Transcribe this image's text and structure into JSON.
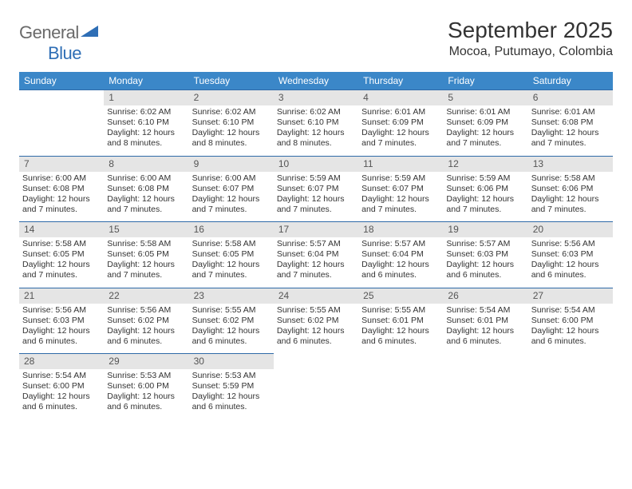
{
  "logo": {
    "general": "General",
    "blue": "Blue"
  },
  "title": "September 2025",
  "location": "Mocoa, Putumayo, Colombia",
  "header_bg": "#3b87c8",
  "header_text": "#ffffff",
  "border_color": "#2f6aa8",
  "daynum_bg": "#e5e5e5",
  "weekdays": [
    "Sunday",
    "Monday",
    "Tuesday",
    "Wednesday",
    "Thursday",
    "Friday",
    "Saturday"
  ],
  "first_weekday_index": 1,
  "days": [
    {
      "n": 1,
      "sr": "6:02 AM",
      "ss": "6:10 PM",
      "dl": "12 hours and 8 minutes."
    },
    {
      "n": 2,
      "sr": "6:02 AM",
      "ss": "6:10 PM",
      "dl": "12 hours and 8 minutes."
    },
    {
      "n": 3,
      "sr": "6:02 AM",
      "ss": "6:10 PM",
      "dl": "12 hours and 8 minutes."
    },
    {
      "n": 4,
      "sr": "6:01 AM",
      "ss": "6:09 PM",
      "dl": "12 hours and 7 minutes."
    },
    {
      "n": 5,
      "sr": "6:01 AM",
      "ss": "6:09 PM",
      "dl": "12 hours and 7 minutes."
    },
    {
      "n": 6,
      "sr": "6:01 AM",
      "ss": "6:08 PM",
      "dl": "12 hours and 7 minutes."
    },
    {
      "n": 7,
      "sr": "6:00 AM",
      "ss": "6:08 PM",
      "dl": "12 hours and 7 minutes."
    },
    {
      "n": 8,
      "sr": "6:00 AM",
      "ss": "6:08 PM",
      "dl": "12 hours and 7 minutes."
    },
    {
      "n": 9,
      "sr": "6:00 AM",
      "ss": "6:07 PM",
      "dl": "12 hours and 7 minutes."
    },
    {
      "n": 10,
      "sr": "5:59 AM",
      "ss": "6:07 PM",
      "dl": "12 hours and 7 minutes."
    },
    {
      "n": 11,
      "sr": "5:59 AM",
      "ss": "6:07 PM",
      "dl": "12 hours and 7 minutes."
    },
    {
      "n": 12,
      "sr": "5:59 AM",
      "ss": "6:06 PM",
      "dl": "12 hours and 7 minutes."
    },
    {
      "n": 13,
      "sr": "5:58 AM",
      "ss": "6:06 PM",
      "dl": "12 hours and 7 minutes."
    },
    {
      "n": 14,
      "sr": "5:58 AM",
      "ss": "6:05 PM",
      "dl": "12 hours and 7 minutes."
    },
    {
      "n": 15,
      "sr": "5:58 AM",
      "ss": "6:05 PM",
      "dl": "12 hours and 7 minutes."
    },
    {
      "n": 16,
      "sr": "5:58 AM",
      "ss": "6:05 PM",
      "dl": "12 hours and 7 minutes."
    },
    {
      "n": 17,
      "sr": "5:57 AM",
      "ss": "6:04 PM",
      "dl": "12 hours and 7 minutes."
    },
    {
      "n": 18,
      "sr": "5:57 AM",
      "ss": "6:04 PM",
      "dl": "12 hours and 6 minutes."
    },
    {
      "n": 19,
      "sr": "5:57 AM",
      "ss": "6:03 PM",
      "dl": "12 hours and 6 minutes."
    },
    {
      "n": 20,
      "sr": "5:56 AM",
      "ss": "6:03 PM",
      "dl": "12 hours and 6 minutes."
    },
    {
      "n": 21,
      "sr": "5:56 AM",
      "ss": "6:03 PM",
      "dl": "12 hours and 6 minutes."
    },
    {
      "n": 22,
      "sr": "5:56 AM",
      "ss": "6:02 PM",
      "dl": "12 hours and 6 minutes."
    },
    {
      "n": 23,
      "sr": "5:55 AM",
      "ss": "6:02 PM",
      "dl": "12 hours and 6 minutes."
    },
    {
      "n": 24,
      "sr": "5:55 AM",
      "ss": "6:02 PM",
      "dl": "12 hours and 6 minutes."
    },
    {
      "n": 25,
      "sr": "5:55 AM",
      "ss": "6:01 PM",
      "dl": "12 hours and 6 minutes."
    },
    {
      "n": 26,
      "sr": "5:54 AM",
      "ss": "6:01 PM",
      "dl": "12 hours and 6 minutes."
    },
    {
      "n": 27,
      "sr": "5:54 AM",
      "ss": "6:00 PM",
      "dl": "12 hours and 6 minutes."
    },
    {
      "n": 28,
      "sr": "5:54 AM",
      "ss": "6:00 PM",
      "dl": "12 hours and 6 minutes."
    },
    {
      "n": 29,
      "sr": "5:53 AM",
      "ss": "6:00 PM",
      "dl": "12 hours and 6 minutes."
    },
    {
      "n": 30,
      "sr": "5:53 AM",
      "ss": "5:59 PM",
      "dl": "12 hours and 6 minutes."
    }
  ],
  "labels": {
    "sunrise": "Sunrise:",
    "sunset": "Sunset:",
    "daylight": "Daylight:"
  }
}
